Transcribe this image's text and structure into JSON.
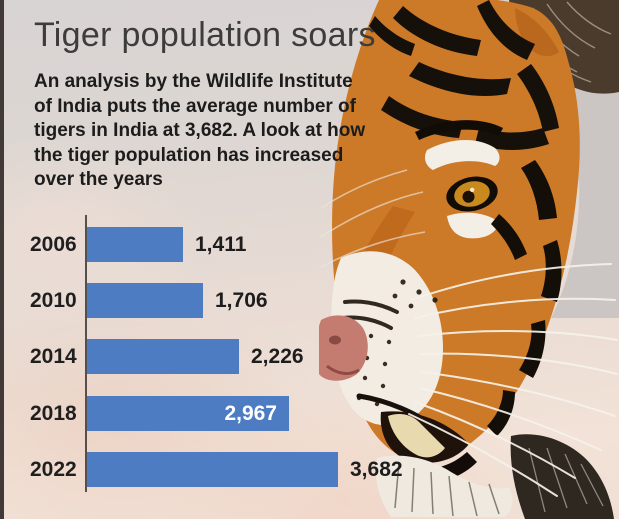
{
  "header": {
    "title": "Tiger population soars"
  },
  "description": {
    "text": "An analysis by the Wildlife Institute of India puts the average number of tigers in India at 3,682. A look at how the tiger population has increased over the years",
    "lines": [
      "An analysis by the Wildlife Institute",
      "of India puts the average number of",
      "tigers in India at 3,682. A look at how",
      "the tiger population has increased",
      "over the years"
    ]
  },
  "chart_data": {
    "type": "bar",
    "orientation": "horizontal",
    "categories": [
      "2006",
      "2010",
      "2014",
      "2018",
      "2022"
    ],
    "values": [
      1411,
      1706,
      2226,
      2967,
      3682
    ],
    "value_labels": [
      "1,411",
      "1,706",
      "2,226",
      "2,967",
      "3,682"
    ],
    "label_placement": [
      "outside",
      "outside",
      "outside",
      "inside",
      "outside"
    ],
    "bar_color": "#4e7cc2",
    "axis_color": "#55504c",
    "text_color": "#1d1d1d",
    "inside_label_color": "#ffffff",
    "xlim": [
      0,
      3900
    ],
    "grid": false,
    "legend": false,
    "title": "",
    "xlabel": "",
    "ylabel": ""
  },
  "image": {
    "alt": "Close-up photo of a tiger's face"
  }
}
